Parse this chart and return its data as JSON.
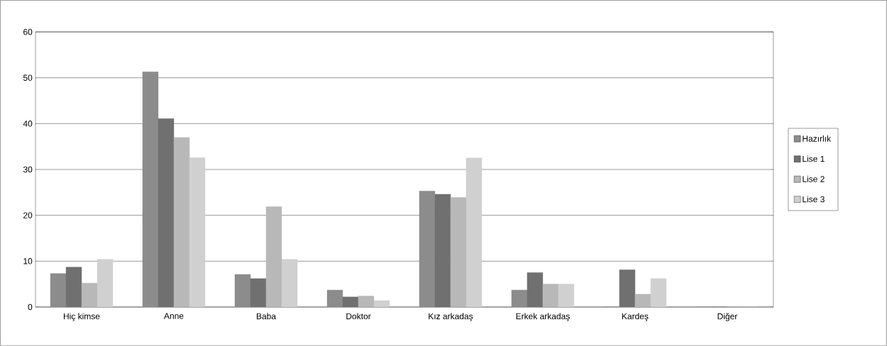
{
  "chart_data": {
    "type": "bar",
    "categories": [
      "Hiç kimse",
      "Anne",
      "Baba",
      "Doktor",
      "Kız arkadaş",
      "Erkek arkadaş",
      "Kardeş",
      "Diğer"
    ],
    "series": [
      {
        "name": "Hazırlık",
        "color": "#8c8c8c",
        "values": [
          7.3,
          51.3,
          7.1,
          3.7,
          25.3,
          3.7,
          0,
          0
        ]
      },
      {
        "name": "Lise 1",
        "color": "#707070",
        "values": [
          8.7,
          41.1,
          6.2,
          2.2,
          24.6,
          7.5,
          8.1,
          0
        ]
      },
      {
        "name": "Lise 2",
        "color": "#b8b8b8",
        "values": [
          5.2,
          37.0,
          21.9,
          2.4,
          23.9,
          5.0,
          2.8,
          0
        ]
      },
      {
        "name": "Lise 3",
        "color": "#d0d0d0",
        "values": [
          10.4,
          32.6,
          10.4,
          1.4,
          32.5,
          5.0,
          6.2,
          0
        ]
      }
    ],
    "ylim": [
      0,
      60
    ],
    "yticks": [
      0,
      10,
      20,
      30,
      40,
      50,
      60
    ],
    "grid": "y",
    "legend": "right"
  }
}
